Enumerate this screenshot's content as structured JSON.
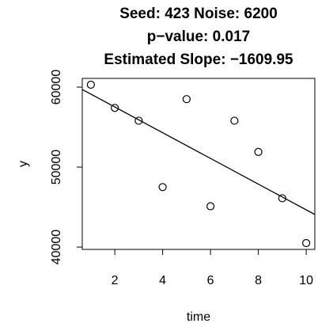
{
  "chart_data": {
    "type": "scatter",
    "title": [
      "Seed: 423 Noise: 6200",
      "p−value: 0.017",
      "Estimated Slope: −1609.95"
    ],
    "x_label": "time",
    "y_label": "y",
    "x": [
      1,
      2,
      3,
      4,
      5,
      6,
      7,
      8,
      9,
      10
    ],
    "values": [
      60300,
      57400,
      55800,
      47500,
      58500,
      45100,
      55800,
      51900,
      46100,
      40500
    ],
    "xlim": [
      0.64,
      10.36
    ],
    "ylim": [
      39708,
      61092
    ],
    "xticks": [
      2,
      4,
      6,
      8,
      10
    ],
    "yticks": [
      40000,
      50000,
      60000
    ],
    "color": "#000000",
    "grid": false,
    "fit_line": true
  }
}
